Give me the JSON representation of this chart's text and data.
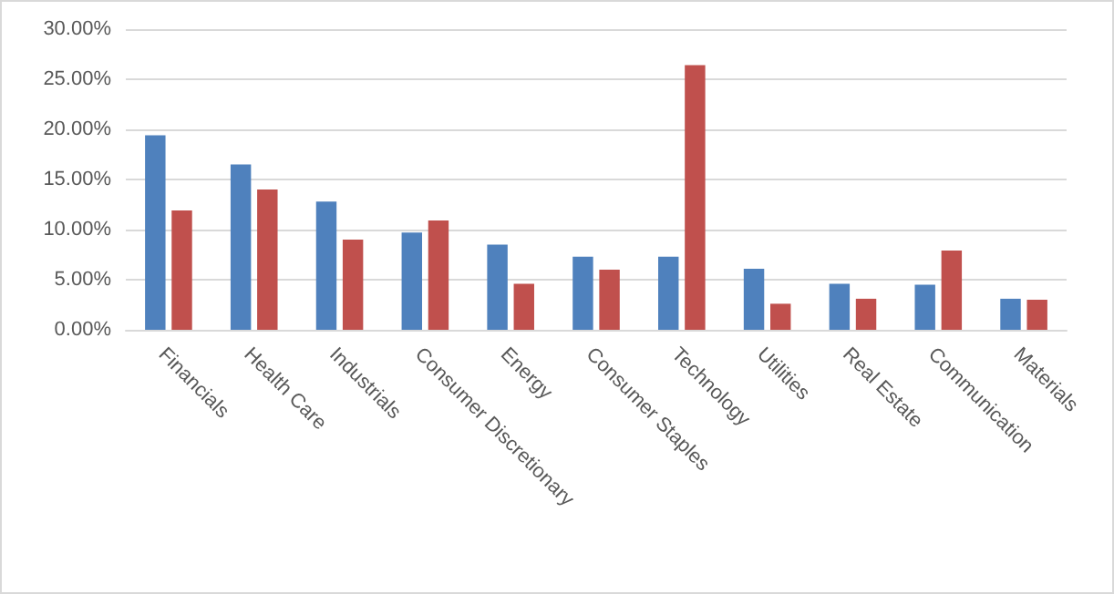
{
  "chart_data": {
    "type": "bar",
    "categories": [
      "Financials",
      "Health Care",
      "Industrials",
      "Consumer Discretionary",
      "Energy",
      "Consumer Staples",
      "Technology",
      "Utilities",
      "Real Estate",
      "Communication",
      "Materials"
    ],
    "series": [
      {
        "color": "#4f81bd",
        "values": [
          19.4,
          16.5,
          12.8,
          9.7,
          8.5,
          7.3,
          7.3,
          6.1,
          4.6,
          4.5,
          3.1
        ]
      },
      {
        "color": "#c0504d",
        "values": [
          11.9,
          14.0,
          9.0,
          10.9,
          4.6,
          6.0,
          26.4,
          2.6,
          3.1,
          7.9,
          3.0
        ]
      }
    ],
    "ylim": [
      0,
      30
    ],
    "yticks": [
      {
        "value": 0,
        "label": "0.00%"
      },
      {
        "value": 5,
        "label": "5.00%"
      },
      {
        "value": 10,
        "label": "10.00%"
      },
      {
        "value": 15,
        "label": "15.00%"
      },
      {
        "value": 20,
        "label": "20.00%"
      },
      {
        "value": 25,
        "label": "25.00%"
      },
      {
        "value": 30,
        "label": "30.00%"
      }
    ],
    "grid": "y"
  }
}
